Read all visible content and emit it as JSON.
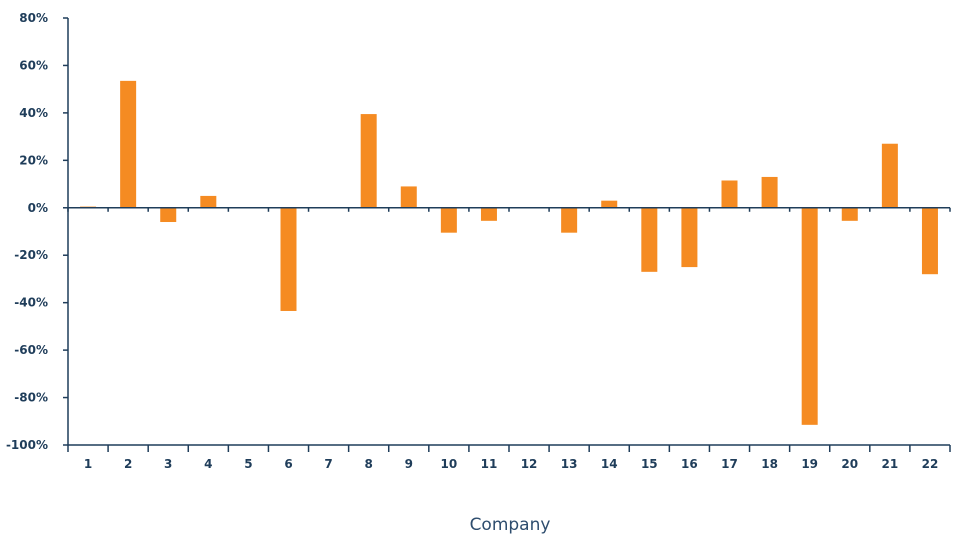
{
  "chart_data": {
    "type": "bar",
    "xlabel": "Company",
    "ylabel": "",
    "categories": [
      "1",
      "2",
      "3",
      "4",
      "5",
      "6",
      "7",
      "8",
      "9",
      "10",
      "11",
      "12",
      "13",
      "14",
      "15",
      "16",
      "17",
      "18",
      "19",
      "20",
      "21",
      "22"
    ],
    "values": [
      0.5,
      53.5,
      -6,
      5,
      0,
      -43.5,
      0,
      39.5,
      9,
      -10.5,
      -5.5,
      0,
      -10.5,
      3,
      -27,
      -25,
      11.5,
      13,
      -91.5,
      -5.5,
      27,
      -28
    ],
    "ylim": [
      -100,
      80
    ],
    "yticks": [
      80,
      60,
      40,
      20,
      0,
      -20,
      -40,
      -60,
      -80,
      -100
    ],
    "ytick_labels": [
      "80%",
      "60%",
      "40%",
      "20%",
      "0%",
      "-20%",
      "-40%",
      "-60%",
      "-80%",
      "-100%"
    ],
    "bar_color": "#f58b22",
    "axis_color": "#1f3d5a",
    "grid": false
  }
}
